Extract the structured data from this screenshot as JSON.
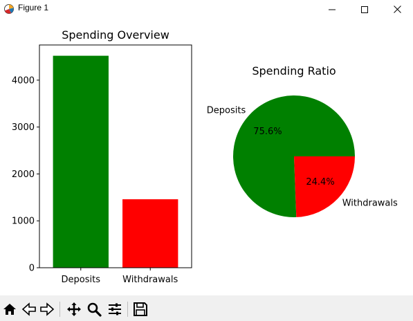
{
  "window": {
    "title": "Figure 1",
    "icon": "matplotlib-figure-icon"
  },
  "toolbar": {
    "buttons": [
      {
        "name": "home-icon",
        "label": "Home"
      },
      {
        "name": "back-icon",
        "label": "Back"
      },
      {
        "name": "forward-icon",
        "label": "Forward"
      },
      {
        "name": "pan-icon",
        "label": "Pan"
      },
      {
        "name": "zoom-icon",
        "label": "Zoom"
      },
      {
        "name": "configure-subplots-icon",
        "label": "Subplots"
      },
      {
        "name": "save-icon",
        "label": "Save"
      }
    ]
  },
  "chart_data": [
    {
      "type": "bar",
      "title": "Spending Overview",
      "categories": [
        "Deposits",
        "Withdrawals"
      ],
      "values": [
        4520,
        1460
      ],
      "colors": [
        "#008000",
        "#ff0000"
      ],
      "ylim": [
        0,
        4750
      ],
      "yticks": [
        0,
        1000,
        2000,
        3000,
        4000
      ],
      "grid": false,
      "xlabel": "",
      "ylabel": ""
    },
    {
      "type": "pie",
      "title": "Spending Ratio",
      "labels": [
        "Deposits",
        "Withdrawals"
      ],
      "values": [
        75.6,
        24.4
      ],
      "autopct": [
        "75.6%",
        "24.4%"
      ],
      "colors": [
        "#008000",
        "#ff0000"
      ],
      "startangle": 0
    }
  ]
}
